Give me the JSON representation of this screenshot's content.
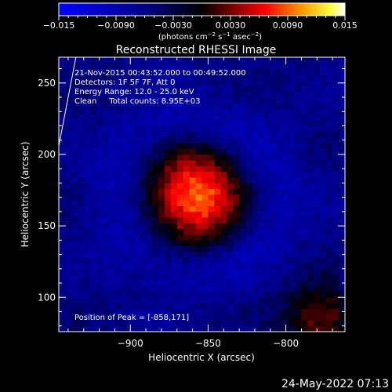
{
  "chart_data": {
    "type": "heatmap",
    "title": "Reconstructed RHESSI Image",
    "xlabel": "Heliocentric X (arcsec)",
    "ylabel": "Heliocentric Y (arcsec)",
    "xlim": [
      -946,
      -762
    ],
    "ylim": [
      76,
      268
    ],
    "x_ticks": [
      -900,
      -850,
      -800
    ],
    "x_tick_labels": [
      "−900",
      "−850",
      "−800"
    ],
    "y_ticks": [
      100,
      150,
      200,
      250
    ],
    "y_tick_labels": [
      "100",
      "150",
      "200",
      "250"
    ],
    "colorbar": {
      "range": [
        -0.015,
        0.015
      ],
      "ticks": [
        -0.015,
        -0.009,
        -0.003,
        0.003,
        0.009,
        0.015
      ],
      "tick_labels": [
        "−0.015",
        "−0.0090",
        "−0.0030",
        "0.0030",
        "0.0090",
        "0.015"
      ],
      "unit_main": "(photons cm",
      "unit_exp1": "−2",
      "unit_mid": " s",
      "unit_exp2": "−1",
      "unit_tail": " asec",
      "unit_exp3": "−2",
      "unit_close": ")"
    },
    "annotations": {
      "time_range": "21-Nov-2015 00:43:52.000 to 00:49:52.000",
      "detectors": "Detectors: 1F 5F 7F, Att 0",
      "energy": "Energy Range: 12.0 - 25.0 keV",
      "clean": "Clean     Total counts: 8.95E+03",
      "peak": "Position of Peak = [-858,171]"
    },
    "peak": {
      "x": -858,
      "y": 171,
      "value": 0.015
    },
    "secondary_source": {
      "x": -778,
      "y": 86,
      "value": 0.009
    },
    "limb_line": [
      [
        -946,
        206
      ],
      [
        -935,
        268
      ]
    ],
    "pixel_size_arcsec": 4
  },
  "footer": {
    "timestamp": "24-May-2022 07:13"
  }
}
